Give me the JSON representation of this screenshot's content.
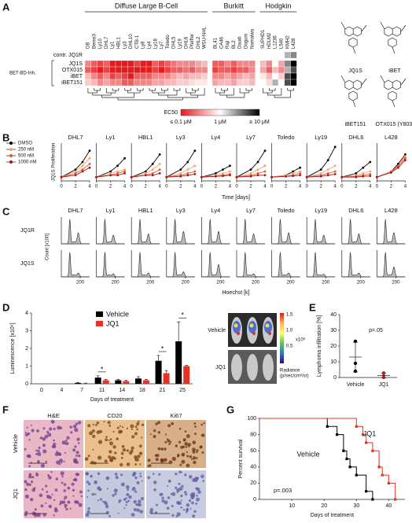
{
  "panels": {
    "A": {
      "label": "A",
      "groups": [
        {
          "name": "Diffuse Large B-Cell",
          "columns": [
            "DB",
            "Berns3",
            "Ly10",
            "DHL7",
            "Ly1",
            "HBL1",
            "Ly3",
            "DHL10",
            "CTB-1",
            "Ly8",
            "Ly4",
            "Ly18",
            "Ly7",
            "Toledo",
            "DHL5",
            "Ly19",
            "DHL6",
            "Pfeiffer",
            "DHL2",
            "WSU-NHL"
          ]
        },
        {
          "name": "Burkitt",
          "columns": [
            "BL41",
            "CA46",
            "Raji",
            "BL2",
            "Daudi",
            "Dogum",
            "Namalwa"
          ]
        },
        {
          "name": "Hodgkin",
          "columns": [
            "SUPHD1",
            "HDLM2",
            "L1236",
            "L540",
            "KMH2",
            "L428"
          ]
        }
      ],
      "rows": [
        "contr. JQ1R",
        "JQ1S",
        "OTX015",
        "iBET",
        "iBET151"
      ],
      "row_group": "BET-BD-Inh.",
      "ec50": [
        [
          1,
          1,
          1,
          1,
          1,
          1,
          1,
          1,
          1,
          1,
          1,
          1,
          1,
          1,
          1,
          1,
          1,
          1,
          1,
          1,
          1,
          1,
          1,
          1,
          1,
          1,
          1,
          1,
          1,
          1,
          1,
          2,
          3
        ],
        [
          0.3,
          0.2,
          0.15,
          0.2,
          0.1,
          0.1,
          0.1,
          0.1,
          0.15,
          0.1,
          0.1,
          0.2,
          0.15,
          0.2,
          0.25,
          0.3,
          0.3,
          0.3,
          0.4,
          0.5,
          0.2,
          0.2,
          0.3,
          0.2,
          0.3,
          0.3,
          0.3,
          0.5,
          0.3,
          1,
          0.4,
          3,
          10
        ],
        [
          0.2,
          0.15,
          0.1,
          0.15,
          0.1,
          0.1,
          0.1,
          0.1,
          0.1,
          0.1,
          0.1,
          0.15,
          0.1,
          0.15,
          0.2,
          0.2,
          0.25,
          0.2,
          0.3,
          0.3,
          0.15,
          0.2,
          0.2,
          0.15,
          0.2,
          0.2,
          0.3,
          0.4,
          0.2,
          0.5,
          0.3,
          2,
          5
        ],
        [
          0.5,
          0.3,
          0.2,
          0.3,
          0.15,
          0.2,
          0.15,
          0.1,
          0.2,
          0.2,
          0.2,
          0.3,
          0.3,
          0.3,
          0.4,
          0.5,
          0.4,
          0.5,
          0.5,
          0.6,
          0.3,
          0.3,
          0.4,
          0.3,
          0.4,
          0.5,
          0.4,
          0.8,
          0.5,
          1,
          0.6,
          5,
          10
        ],
        [
          0.6,
          0.5,
          0.3,
          0.4,
          0.3,
          0.3,
          0.2,
          0.2,
          0.3,
          0.3,
          0.3,
          0.4,
          0.4,
          0.5,
          0.5,
          0.6,
          0.6,
          0.7,
          0.8,
          0.8,
          0.4,
          0.5,
          0.5,
          0.4,
          0.6,
          0.6,
          0.5,
          1,
          0.7,
          2,
          1,
          5,
          10
        ]
      ],
      "colorbar": {
        "title": "EC50",
        "labels": [
          "≤ 0.1 μM",
          "1 μM",
          "≥ 10 μM"
        ]
      },
      "compounds": [
        "JQ1S",
        "iBET",
        "iBET151",
        "OTX015 (Y803)"
      ]
    },
    "B": {
      "label": "B",
      "type": "line",
      "cell_lines": [
        "DHL7",
        "Ly1",
        "HBL1",
        "Ly3",
        "Ly4",
        "Ly7",
        "Toledo",
        "Ly19",
        "DHL6",
        "L428"
      ],
      "ylabel": "JQ1S Proliferation",
      "xlabel": "Time [days]",
      "x": [
        0,
        2,
        3,
        4
      ],
      "xlim": [
        0,
        4
      ],
      "xticks": [
        0,
        2,
        4
      ],
      "ylim": [
        0,
        10
      ],
      "series": [
        {
          "name": "DMSO",
          "color": "#000000"
        },
        {
          "name": "250 nM",
          "color": "#f2a36b"
        },
        {
          "name": "500 nM",
          "color": "#e4572e"
        },
        {
          "name": "1000 nM",
          "color": "#a8141e"
        }
      ],
      "values": [
        [
          [
            1,
            3,
            5,
            8
          ],
          [
            1,
            2.5,
            4,
            6
          ],
          [
            1,
            2,
            3,
            4.5
          ],
          [
            1,
            1.5,
            2.5,
            3.5
          ]
        ],
        [
          [
            1,
            2.5,
            4,
            6
          ],
          [
            1,
            2,
            2.5,
            3
          ],
          [
            1,
            1.5,
            2,
            2.5
          ],
          [
            1,
            1.5,
            1.5,
            2
          ]
        ],
        [
          [
            1,
            2.5,
            4.5,
            7
          ],
          [
            1,
            2,
            3,
            4.5
          ],
          [
            1,
            1.5,
            2,
            3
          ],
          [
            1,
            1.5,
            1.5,
            2
          ]
        ],
        [
          [
            1,
            3,
            5,
            8
          ],
          [
            1,
            2,
            3,
            4
          ],
          [
            1,
            1.5,
            2,
            2.5
          ],
          [
            1,
            1.2,
            1.5,
            1.8
          ]
        ],
        [
          [
            1,
            2,
            3,
            4
          ],
          [
            1,
            1.5,
            2,
            2.5
          ],
          [
            1,
            1.2,
            1.5,
            1.8
          ],
          [
            1,
            1.2,
            1.3,
            1.5
          ]
        ],
        [
          [
            1,
            3,
            5,
            8
          ],
          [
            1,
            2,
            3,
            4
          ],
          [
            1,
            1.5,
            2,
            2.5
          ],
          [
            1,
            1.2,
            1.5,
            1.5
          ]
        ],
        [
          [
            1,
            1.5,
            2.5,
            3.5
          ],
          [
            1,
            1.5,
            2,
            2.5
          ],
          [
            1,
            1.2,
            1.5,
            2
          ],
          [
            1,
            1.2,
            1.3,
            1.5
          ]
        ],
        [
          [
            1,
            3,
            5.5,
            9
          ],
          [
            1,
            2,
            3,
            4
          ],
          [
            1,
            1.5,
            2,
            2.5
          ],
          [
            1,
            1.2,
            1.5,
            1.8
          ]
        ],
        [
          [
            1,
            2,
            3.5,
            5
          ],
          [
            1,
            1.5,
            2,
            2.5
          ],
          [
            1,
            1.2,
            1.5,
            1.8
          ],
          [
            1,
            1,
            1.2,
            1.3
          ]
        ],
        [
          [
            1,
            2.5,
            4.5,
            7
          ],
          [
            1,
            2.5,
            4,
            6.5
          ],
          [
            1,
            2.3,
            4,
            6
          ],
          [
            1,
            2.2,
            3.5,
            5.5
          ]
        ]
      ]
    },
    "C": {
      "label": "C",
      "cell_lines": [
        "DHL7",
        "Ly1",
        "HBL1",
        "Ly3",
        "Ly4",
        "Ly7",
        "Toledo",
        "Ly19",
        "DHL6",
        "L428"
      ],
      "rows": [
        "JQ1R",
        "JQ1S"
      ],
      "ylabel": "Count [x100]",
      "xlabel": "Hoechst [k]",
      "xlim": [
        0,
        300
      ],
      "xticks": [
        200
      ],
      "peaks": [
        [
          [
            1,
            0.45
          ],
          [
            1,
            0.35
          ],
          [
            1,
            0.4
          ],
          [
            1,
            0.5
          ],
          [
            1,
            0.5
          ],
          [
            1,
            0.4
          ],
          [
            1,
            0.45
          ],
          [
            1,
            0.35
          ],
          [
            1,
            0.4
          ],
          [
            1,
            0.45
          ]
        ],
        [
          [
            1,
            0.15
          ],
          [
            1,
            0.12
          ],
          [
            1,
            0.15
          ],
          [
            1,
            0.2
          ],
          [
            1,
            0.5
          ],
          [
            1,
            0.12
          ],
          [
            1,
            0.15
          ],
          [
            1,
            0.1
          ],
          [
            1,
            0.15
          ],
          [
            1,
            0.4
          ]
        ]
      ]
    },
    "D": {
      "label": "D",
      "type": "bar",
      "ylabel": "Luminescence [x10⁶]",
      "xlabel": "Days of treatment",
      "categories": [
        0,
        4,
        7,
        11,
        14,
        18,
        21,
        25
      ],
      "ylim": [
        0,
        4
      ],
      "yticks": [
        0,
        1,
        2,
        3,
        4
      ],
      "series": [
        {
          "name": "Vehicle",
          "color": "#000000",
          "values": [
            0,
            0,
            0.05,
            0.35,
            0.2,
            0.3,
            1.3,
            2.4
          ],
          "errors": [
            0,
            0,
            0.02,
            0.1,
            0.05,
            0.1,
            0.3,
            1.1
          ]
        },
        {
          "name": "JQ1",
          "color": "#e53323",
          "values": [
            0,
            0,
            0.03,
            0.2,
            0.15,
            0.2,
            0.6,
            1.0
          ],
          "errors": [
            0,
            0,
            0.01,
            0.05,
            0.05,
            0.05,
            0.15,
            0.05
          ]
        }
      ],
      "annotations": [
        {
          "text": "*",
          "category": 3
        },
        {
          "text": "*",
          "category": 6
        },
        {
          "text": "*",
          "category": 7
        }
      ],
      "imaging": {
        "rows": [
          "Vehicle",
          "JQ1"
        ],
        "scale_labels": [
          "1.5",
          "1.0",
          "0.5"
        ],
        "scale_unit": "x10⁸",
        "radiance": [
          "Radiance",
          "(p/sec/cm²/sr)"
        ]
      }
    },
    "E": {
      "label": "E",
      "ylabel": "Lymphoma infiltration [%]",
      "ylim": [
        0,
        40
      ],
      "yticks": [
        0,
        10,
        20,
        30,
        40
      ],
      "categories": [
        "Vehicle",
        "JQ1"
      ],
      "colors": [
        "#000000",
        "#e53323"
      ],
      "points": [
        [
          23,
          9,
          4
        ],
        [
          0,
          1,
          3
        ]
      ],
      "means": [
        13,
        1.3
      ],
      "sd": [
        9.5,
        1.5
      ],
      "annotation": "p=.05"
    },
    "F": {
      "label": "F",
      "columns": [
        "H&E",
        "CD20",
        "Ki67"
      ],
      "rows": [
        "Vehicle",
        "JQ1"
      ]
    },
    "G": {
      "label": "G",
      "type": "step",
      "ylabel": "Percent survival",
      "xlabel": "Days of treatment",
      "xlim": [
        0,
        45
      ],
      "xticks": [
        10,
        20,
        30,
        40
      ],
      "ylim": [
        0,
        100
      ],
      "yticks": [
        0,
        20,
        40,
        60,
        80,
        100
      ],
      "series": [
        {
          "name": "Vehicle",
          "color": "#000000",
          "x": [
            0,
            21,
            24,
            26,
            27,
            28,
            30,
            33,
            35
          ],
          "y": [
            100,
            90,
            80,
            60,
            50,
            40,
            30,
            10,
            0
          ]
        },
        {
          "name": "JQ1",
          "color": "#e53323",
          "x": [
            0,
            30,
            32,
            33,
            35,
            37,
            38,
            40,
            42
          ],
          "y": [
            100,
            90,
            80,
            70,
            60,
            40,
            30,
            20,
            0
          ]
        }
      ],
      "annotation": "p=.003"
    }
  }
}
